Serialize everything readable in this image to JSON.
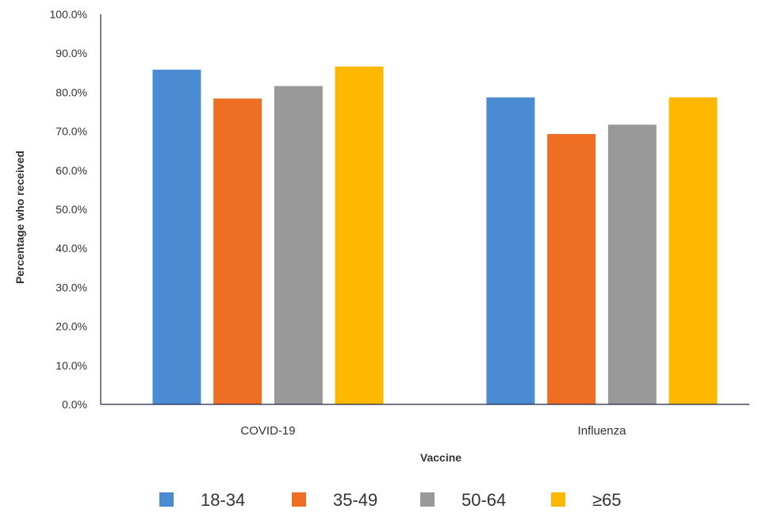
{
  "chart_data": {
    "type": "bar",
    "title": "",
    "xlabel": "Vaccine",
    "ylabel": "Percentage who received",
    "categories": [
      "COVID-19",
      "Influenza"
    ],
    "series": [
      {
        "name": "18-34",
        "color": "#4A8BD2",
        "values": [
          85.8,
          78.7
        ]
      },
      {
        "name": "35-49",
        "color": "#EE6E23",
        "values": [
          78.4,
          69.3
        ]
      },
      {
        "name": "50-64",
        "color": "#999999",
        "values": [
          81.6,
          71.7
        ]
      },
      {
        "name": "≥65",
        "color": "#FEB800",
        "values": [
          86.6,
          78.7
        ]
      }
    ],
    "ylim": [
      0,
      100
    ],
    "yticks": [
      "0.0%",
      "10.0%",
      "20.0%",
      "30.0%",
      "40.0%",
      "50.0%",
      "60.0%",
      "70.0%",
      "80.0%",
      "90.0%",
      "100.0%"
    ],
    "grid": false,
    "legend_position": "bottom"
  }
}
